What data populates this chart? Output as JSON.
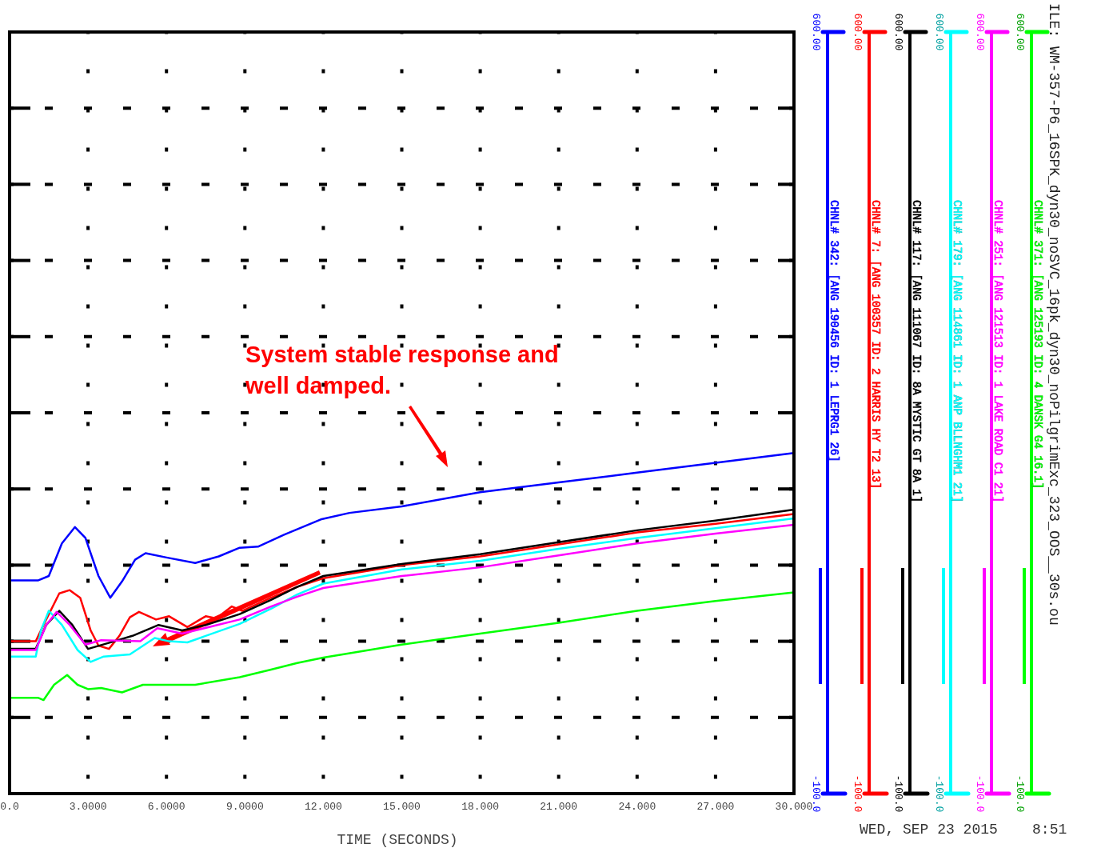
{
  "chart_data": {
    "type": "line",
    "title": "ILE: WM-357-P6_16SPK_dyn30_noSVC_16pk_dyn30_noPilgrimExc_323_OOS__30s.ou",
    "xlabel": "TIME (SECONDS)",
    "xlim": [
      0,
      30
    ],
    "xticks": [
      {
        "value": 0,
        "label": "0.0"
      },
      {
        "value": 3,
        "label": "3.0000"
      },
      {
        "value": 6,
        "label": "6.0000"
      },
      {
        "value": 9,
        "label": "9.0000"
      },
      {
        "value": 12,
        "label": "12.000"
      },
      {
        "value": 15,
        "label": "15.000"
      },
      {
        "value": 18,
        "label": "18.000"
      },
      {
        "value": 21,
        "label": "21.000"
      },
      {
        "value": 24,
        "label": "24.000"
      },
      {
        "value": 27,
        "label": "27.000"
      },
      {
        "value": 30,
        "label": "30.000"
      }
    ],
    "ylim": [
      -100,
      600
    ],
    "yticks": [
      {
        "value": -100,
        "label": "-100.0"
      },
      {
        "value": -30,
        "label": null
      },
      {
        "value": 40,
        "label": null
      },
      {
        "value": 110,
        "label": null
      },
      {
        "value": 180,
        "label": null
      },
      {
        "value": 250,
        "label": null
      },
      {
        "value": 320,
        "label": null
      },
      {
        "value": 390,
        "label": null
      },
      {
        "value": 460,
        "label": null
      },
      {
        "value": 530,
        "label": null
      },
      {
        "value": 600,
        "label": "600.00"
      }
    ],
    "grid": true,
    "legend": "right",
    "line_style": "solid",
    "annotations": [
      "System stable response and well damped.",
      "WED, SEP 23 2015    8:51"
    ],
    "series": [
      {
        "name": "CHNL# 342: [ANG 190456 ID: 1 LEPRG1 26]",
        "color": "#0000ff",
        "x": [
          0,
          1.1,
          1.5,
          2.0,
          2.5,
          2.9,
          3.4,
          3.85,
          4.3,
          4.8,
          5.2,
          6,
          7.1,
          8,
          8.8,
          9.5,
          10.5,
          11.9,
          13,
          15,
          18,
          21,
          24,
          27,
          30
        ],
        "values": [
          96,
          96,
          100,
          130,
          145,
          135,
          100,
          80,
          95,
          115,
          121,
          117,
          112,
          118,
          126,
          127,
          138,
          152,
          158,
          164,
          177,
          186,
          195,
          204,
          213
        ]
      },
      {
        "name": "CHNL# 7: [ANG 100357 ID: 2 HARRIS HY T2 13]",
        "color": "#ff0000",
        "x": [
          0,
          1.0,
          1.4,
          1.9,
          2.3,
          2.7,
          3.1,
          3.4,
          3.8,
          4.2,
          4.6,
          4.95,
          5.6,
          6.1,
          6.8,
          7.5,
          7.9,
          8.5,
          8.9,
          10,
          11,
          12,
          15,
          18,
          21,
          24,
          27,
          30
        ],
        "values": [
          40,
          40,
          60,
          84,
          87,
          80,
          50,
          36,
          33,
          45,
          62,
          67,
          60,
          63,
          53,
          63,
          61,
          72,
          68,
          80,
          90,
          98,
          110,
          118,
          129,
          140,
          148,
          157
        ]
      },
      {
        "name": "CHNL# 117: [ANG 111067 ID: 8A MYSTIC GT 8A 1]",
        "color": "#000000",
        "x": [
          0,
          1.0,
          1.4,
          1.9,
          2.4,
          3.0,
          4.0,
          4.7,
          5.7,
          6.6,
          7.5,
          8.8,
          10,
          11,
          12,
          15,
          18,
          21,
          24,
          27,
          30
        ],
        "values": [
          33,
          33,
          55,
          68,
          55,
          33,
          40,
          45,
          55,
          50,
          55,
          65,
          78,
          90,
          100,
          111,
          120,
          131,
          142,
          151,
          161
        ]
      },
      {
        "name": "CHNL# 179: [ANG 114861 ID: 1 ANP BLLNGHM1 21]",
        "color": "#00ffff",
        "x": [
          0,
          1.0,
          1.2,
          1.5,
          2.0,
          2.6,
          3.1,
          3.6,
          4.6,
          5.55,
          6.1,
          6.8,
          8.8,
          10,
          11,
          12,
          15,
          18,
          21,
          24,
          27,
          30
        ],
        "values": [
          26,
          26,
          50,
          68,
          55,
          32,
          21,
          26,
          28,
          43,
          40,
          39,
          56,
          70,
          83,
          93,
          106,
          114,
          125,
          135,
          144,
          153
        ]
      },
      {
        "name": "CHNL# 251: [ANG 121513 ID: 1 LAKE ROAD C1 21]",
        "color": "#ff00ff",
        "x": [
          0,
          1.0,
          1.4,
          1.8,
          2.3,
          2.9,
          3.5,
          5.0,
          5.65,
          6.6,
          8.8,
          10,
          11,
          12,
          15,
          18,
          21,
          24,
          27,
          30
        ],
        "values": [
          32,
          32,
          55,
          67,
          55,
          37,
          41,
          40,
          52,
          47,
          60,
          72,
          81,
          89,
          100,
          108,
          119,
          130,
          139,
          147
        ]
      },
      {
        "name": "CHNL# 371: [ANG 125193 ID: 4 DANSK G4 16.1]",
        "color": "#00ff00",
        "x": [
          0,
          1.1,
          1.3,
          1.7,
          2.2,
          2.6,
          3.0,
          3.5,
          4.3,
          5.1,
          7.1,
          8.8,
          10,
          11,
          12,
          15,
          18,
          21,
          24,
          27,
          30
        ],
        "values": [
          -12,
          -12,
          -14,
          0,
          9,
          0,
          -4,
          -3,
          -7,
          0,
          0,
          7,
          14,
          20,
          25,
          37,
          47,
          57,
          68,
          77,
          85
        ]
      }
    ]
  }
}
